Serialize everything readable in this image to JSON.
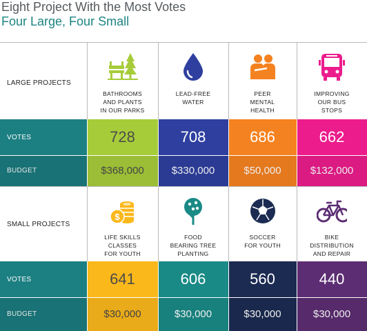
{
  "title": "Eight Project With the Most Votes",
  "subtitle": "Four Large, Four Small",
  "chart_data": {
    "type": "table",
    "sections": [
      {
        "label": "LARGE PROJECTS",
        "projects": [
          {
            "name_lines": [
              "BATHROOMS",
              "AND PLANTS",
              "IN OUR PARKS"
            ],
            "icon": "park-bench-tree-icon",
            "votes": 728,
            "budget": "$368,000",
            "color": "#a7cc3a"
          },
          {
            "name_lines": [
              "LEAD-FREE",
              "WATER"
            ],
            "icon": "water-drop-icon",
            "votes": 708,
            "budget": "$330,000",
            "color": "#2e3f9f"
          },
          {
            "name_lines": [
              "PEER",
              "MENTAL",
              "HEALTH"
            ],
            "icon": "people-support-icon",
            "votes": 686,
            "budget": "$50,000",
            "color": "#f58220"
          },
          {
            "name_lines": [
              "IMPROVING",
              "OUR BUS",
              "STOPS"
            ],
            "icon": "bus-icon",
            "votes": 662,
            "budget": "$132,000",
            "color": "#ec1c8c"
          }
        ]
      },
      {
        "label": "SMALL PROJECTS",
        "projects": [
          {
            "name_lines": [
              "LIFE SKILLS",
              "CLASSES",
              "FOR YOUTH"
            ],
            "icon": "coins-icon",
            "votes": 641,
            "budget": "$30,000",
            "color": "#fbb81b"
          },
          {
            "name_lines": [
              "FOOD",
              "BEARING TREE",
              "PLANTING"
            ],
            "icon": "fruit-tree-icon",
            "votes": 606,
            "budget": "$30,000",
            "color": "#1a8a86"
          },
          {
            "name_lines": [
              "SOCCER",
              "FOR YOUTH"
            ],
            "icon": "soccer-ball-icon",
            "votes": 560,
            "budget": "$30,000",
            "color": "#1b2b52"
          },
          {
            "name_lines": [
              "BIKE",
              "DISTRIBUTION",
              "AND REPAIR"
            ],
            "icon": "bicycle-icon",
            "votes": 440,
            "budget": "$30,000",
            "color": "#5c2d73"
          }
        ]
      }
    ],
    "row_labels": {
      "votes": "VOTES",
      "budget": "BUDGET"
    },
    "label_color": "#1c7f82"
  }
}
